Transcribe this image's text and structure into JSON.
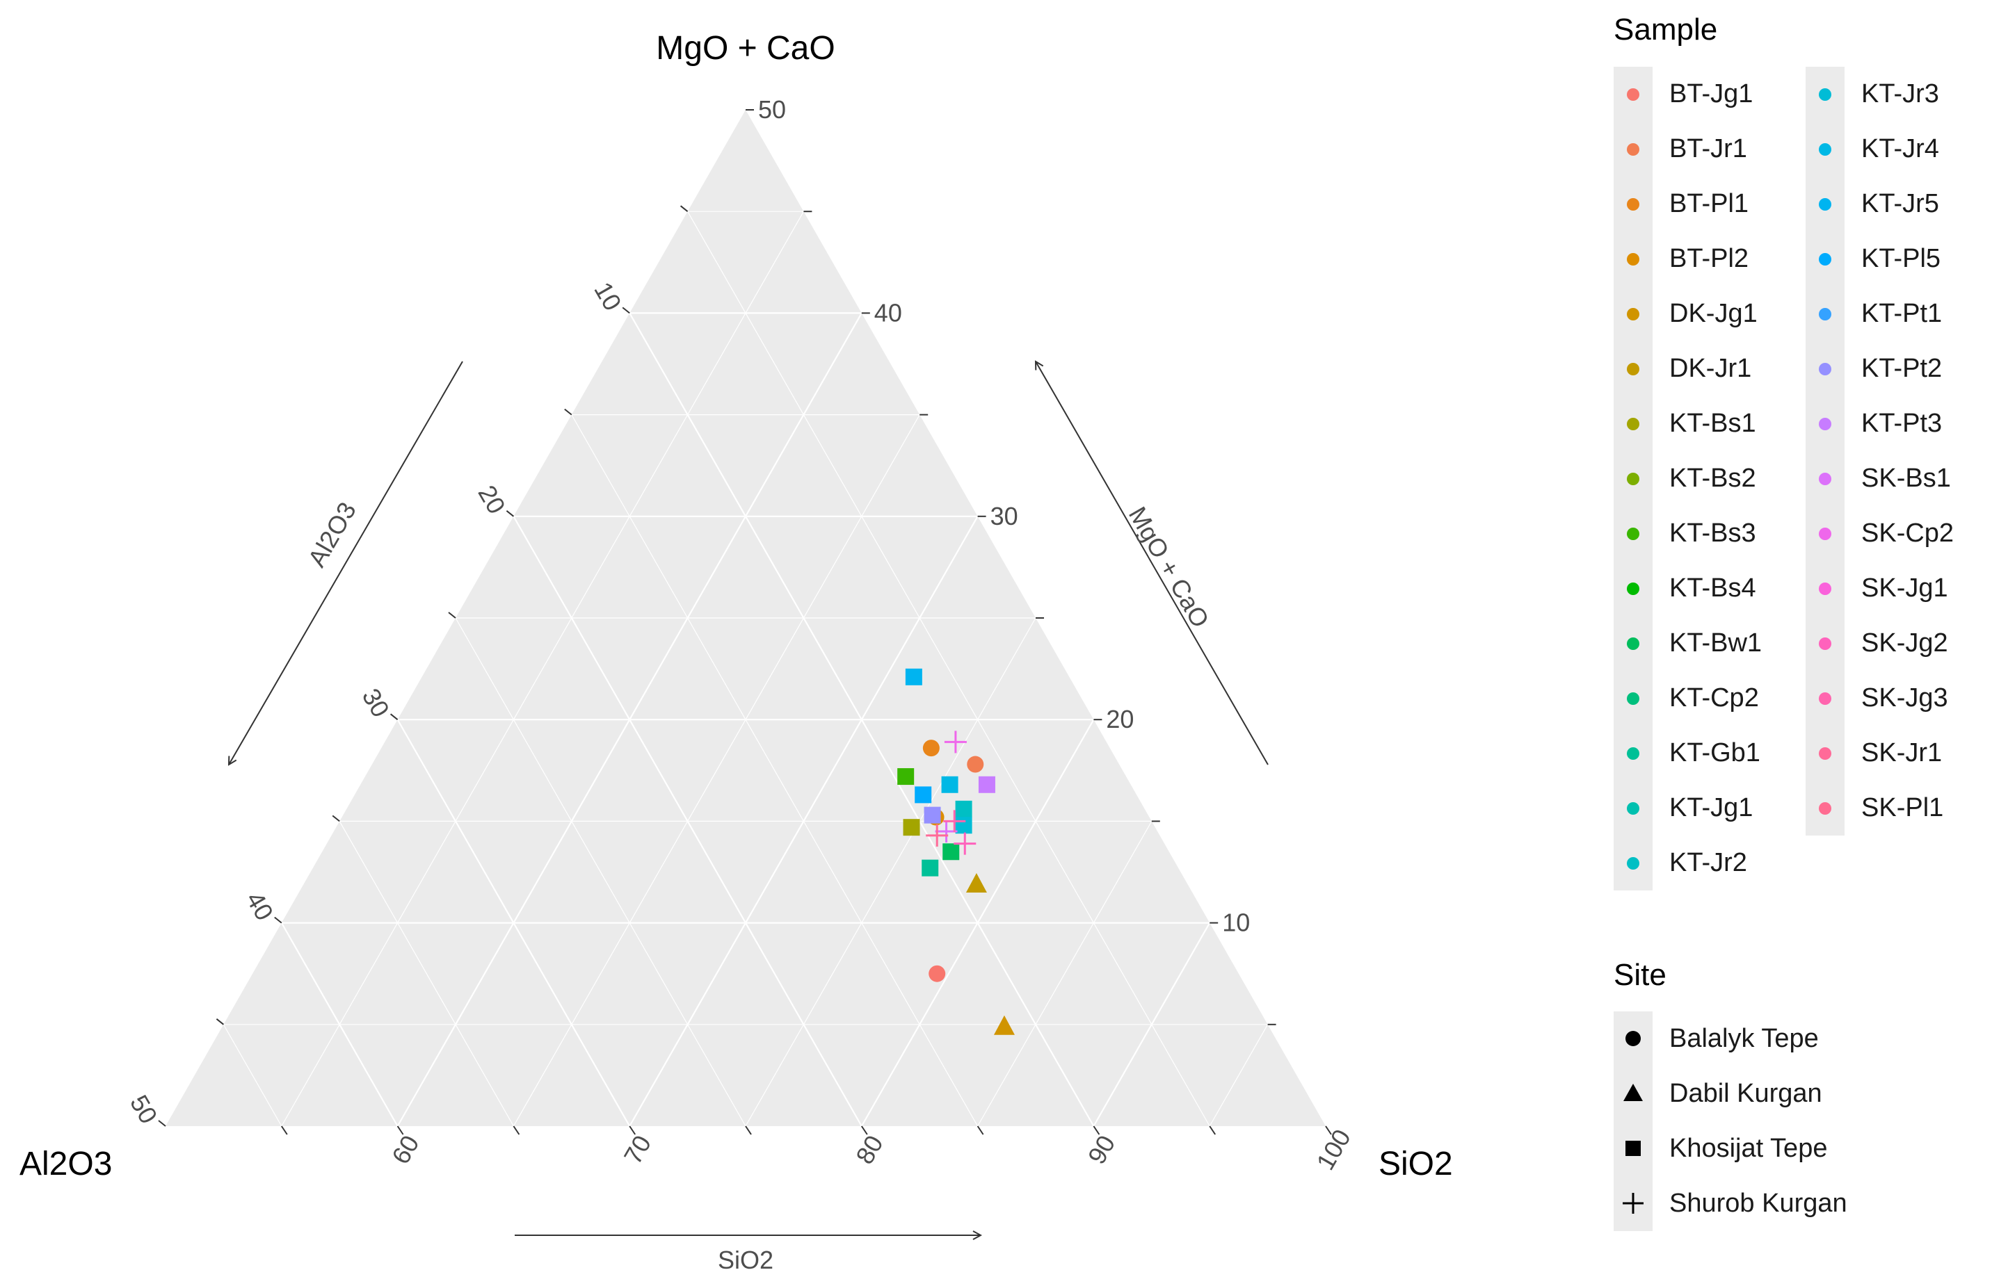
{
  "chart_data": {
    "type": "scatter",
    "subtype": "ternary",
    "axes": {
      "top": {
        "name": "MgO + CaO",
        "range": [
          0,
          50
        ],
        "ticks": [
          10,
          20,
          30,
          40,
          50
        ],
        "tick_labels": [
          "10",
          "20",
          "30",
          "40",
          "50"
        ]
      },
      "right": {
        "name": "SiO2",
        "range": [
          50,
          100
        ],
        "ticks": [
          60,
          70,
          80,
          90,
          100
        ],
        "tick_labels": [
          "60",
          "70",
          "80",
          "90",
          "100"
        ]
      },
      "left": {
        "name": "Al2O3",
        "range": [
          0,
          50
        ],
        "ticks": [
          10,
          20,
          30,
          40,
          50
        ],
        "tick_labels": [
          "10",
          "20",
          "30",
          "40",
          "50"
        ]
      }
    },
    "arrow_labels": {
      "left": "Al2O3",
      "right": "MgO + CaO",
      "bottom": "SiO2"
    },
    "grid": true,
    "legend_position": "right",
    "sample_legend": {
      "title": "Sample",
      "items": [
        {
          "label": "BT-Jg1",
          "color": "#F8766D"
        },
        {
          "label": "BT-Jr1",
          "color": "#F17D51"
        },
        {
          "label": "BT-Pl1",
          "color": "#E8851A"
        },
        {
          "label": "BT-Pl2",
          "color": "#DD8D00"
        },
        {
          "label": "DK-Jg1",
          "color": "#D09400"
        },
        {
          "label": "DK-Jr1",
          "color": "#C29A00"
        },
        {
          "label": "KT-Bs1",
          "color": "#A3A500"
        },
        {
          "label": "KT-Bs2",
          "color": "#7CAE00"
        },
        {
          "label": "KT-Bs3",
          "color": "#39B600"
        },
        {
          "label": "KT-Bs4",
          "color": "#00BB00"
        },
        {
          "label": "KT-Bw1",
          "color": "#00BD5C"
        },
        {
          "label": "KT-Cp2",
          "color": "#00BF7D"
        },
        {
          "label": "KT-Gb1",
          "color": "#00C097"
        },
        {
          "label": "KT-Jg1",
          "color": "#00C0AF"
        },
        {
          "label": "KT-Jr2",
          "color": "#00BFC4"
        },
        {
          "label": "KT-Jr3",
          "color": "#00BCD6"
        },
        {
          "label": "KT-Jr4",
          "color": "#00B8E5"
        },
        {
          "label": "KT-Jr5",
          "color": "#00B4F0"
        },
        {
          "label": "KT-Pl5",
          "color": "#00ABFD"
        },
        {
          "label": "KT-Pt1",
          "color": "#35A2FF"
        },
        {
          "label": "KT-Pt2",
          "color": "#9590FF"
        },
        {
          "label": "KT-Pt3",
          "color": "#C77CFF"
        },
        {
          "label": "SK-Bs1",
          "color": "#DC71FA"
        },
        {
          "label": "SK-Cp2",
          "color": "#EF67EB"
        },
        {
          "label": "SK-Jg1",
          "color": "#FA62DB"
        },
        {
          "label": "SK-Jg2",
          "color": "#FF62BC"
        },
        {
          "label": "SK-Jg3",
          "color": "#FF65AE"
        },
        {
          "label": "SK-Jr1",
          "color": "#FF6A98"
        },
        {
          "label": "SK-Pl1",
          "color": "#FF6C91"
        }
      ]
    },
    "site_legend": {
      "title": "Site",
      "items": [
        {
          "label": "Balalyk Tepe",
          "shape": "circle"
        },
        {
          "label": "Dabil Kurgan",
          "shape": "triangle"
        },
        {
          "label": "Khosijat Tepe",
          "shape": "square"
        },
        {
          "label": "Shurob Kurgan",
          "shape": "plus"
        }
      ]
    },
    "points": [
      {
        "sample": "BT-Jg1",
        "site": "Balalyk Tepe",
        "MgO_CaO": 7.5,
        "SiO2": 79.5,
        "Al2O3": 13.0
      },
      {
        "sample": "BT-Jr1",
        "site": "Balalyk Tepe",
        "MgO_CaO": 17.8,
        "SiO2": 76.0,
        "Al2O3": 6.2
      },
      {
        "sample": "BT-Pl1",
        "site": "Balalyk Tepe",
        "MgO_CaO": 18.6,
        "SiO2": 73.7,
        "Al2O3": 7.7
      },
      {
        "sample": "BT-Pl2",
        "site": "Balalyk Tepe",
        "MgO_CaO": 15.2,
        "SiO2": 75.6,
        "Al2O3": 9.2
      },
      {
        "sample": "DK-Jg1",
        "site": "Dabil Kurgan",
        "MgO_CaO": 4.9,
        "SiO2": 83.7,
        "Al2O3": 11.4
      },
      {
        "sample": "DK-Jr1",
        "site": "Dabil Kurgan",
        "MgO_CaO": 11.9,
        "SiO2": 79.0,
        "Al2O3": 9.1
      },
      {
        "sample": "KT-Bs1",
        "site": "Khosijat Tepe",
        "MgO_CaO": 14.7,
        "SiO2": 74.8,
        "Al2O3": 10.5
      },
      {
        "sample": "KT-Bs3",
        "site": "Khosijat Tepe",
        "MgO_CaO": 17.2,
        "SiO2": 73.3,
        "Al2O3": 9.5
      },
      {
        "sample": "KT-Bw1",
        "site": "Khosijat Tepe",
        "MgO_CaO": 13.5,
        "SiO2": 77.1,
        "Al2O3": 9.4
      },
      {
        "sample": "KT-Gb1",
        "site": "Khosijat Tepe",
        "MgO_CaO": 12.7,
        "SiO2": 76.6,
        "Al2O3": 10.7
      },
      {
        "sample": "KT-Jr2",
        "site": "Khosijat Tepe",
        "MgO_CaO": 15.6,
        "SiO2": 76.6,
        "Al2O3": 7.8
      },
      {
        "sample": "KT-Jr3",
        "site": "Khosijat Tepe",
        "MgO_CaO": 14.8,
        "SiO2": 77.0,
        "Al2O3": 8.2
      },
      {
        "sample": "KT-Jr4",
        "site": "Khosijat Tepe",
        "MgO_CaO": 16.8,
        "SiO2": 75.4,
        "Al2O3": 7.8
      },
      {
        "sample": "KT-Jr5",
        "site": "Khosijat Tepe",
        "MgO_CaO": 22.1,
        "SiO2": 71.2,
        "Al2O3": 6.7
      },
      {
        "sample": "KT-Pl5",
        "site": "Khosijat Tepe",
        "MgO_CaO": 16.3,
        "SiO2": 74.5,
        "Al2O3": 9.2
      },
      {
        "sample": "KT-Pt2",
        "site": "Khosijat Tepe",
        "MgO_CaO": 15.3,
        "SiO2": 75.4,
        "Al2O3": 9.3
      },
      {
        "sample": "KT-Pt3",
        "site": "Khosijat Tepe",
        "MgO_CaO": 16.8,
        "SiO2": 77.0,
        "Al2O3": 6.2
      },
      {
        "sample": "SK-Bs1",
        "site": "Shurob Kurgan",
        "MgO_CaO": 14.5,
        "SiO2": 76.4,
        "Al2O3": 9.1
      },
      {
        "sample": "SK-Cp2",
        "site": "Shurob Kurgan",
        "MgO_CaO": 18.9,
        "SiO2": 74.6,
        "Al2O3": 6.5
      },
      {
        "sample": "SK-Jg2",
        "site": "Shurob Kurgan",
        "MgO_CaO": 13.9,
        "SiO2": 77.5,
        "Al2O3": 8.6
      },
      {
        "sample": "SK-Jg3",
        "site": "Shurob Kurgan",
        "MgO_CaO": 15.0,
        "SiO2": 76.5,
        "Al2O3": 8.5
      },
      {
        "sample": "SK-Jr1",
        "site": "Shurob Kurgan",
        "MgO_CaO": 14.3,
        "SiO2": 76.1,
        "Al2O3": 9.6
      }
    ]
  }
}
